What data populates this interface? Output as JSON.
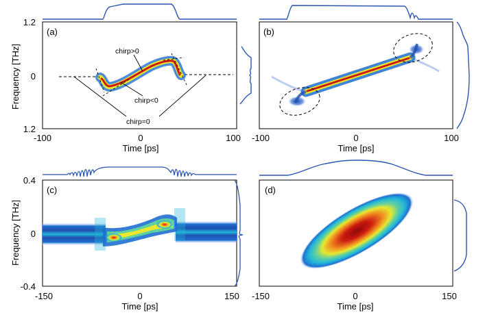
{
  "figure": {
    "ylabel_top": "Frequency [THz]",
    "ylabel_bottom": "Frequency [THz]"
  },
  "colors": {
    "background_blue": "#1f3f9a",
    "line_blue": "#2a55b0",
    "colormap": [
      "#2437a0",
      "#1f6fd0",
      "#22b6d8",
      "#5fd0a0",
      "#e8e830",
      "#f08a20",
      "#cc1a10",
      "#8f0a08"
    ]
  },
  "chart_data": [
    {
      "type": "heatmap",
      "panel_label": "(a)",
      "xlabel": "Time [ps]",
      "xlim": [
        -100,
        100
      ],
      "xticks": [
        "-100",
        "0",
        "100"
      ],
      "ytick_labels": [
        "1.2",
        "0",
        "1.2"
      ],
      "ylim": [
        -1.2,
        1.2
      ],
      "ridge": [
        [
          -35,
          -0.18
        ],
        [
          -28,
          -0.2
        ],
        [
          -20,
          -0.15
        ],
        [
          0,
          0.0
        ],
        [
          20,
          0.15
        ],
        [
          28,
          0.2
        ],
        [
          35,
          0.18
        ]
      ],
      "annotations": [
        "chirp>0",
        "chirp<0",
        "chirp=0"
      ],
      "top_marginal": [
        [
          -70,
          0.05
        ],
        [
          -40,
          0.12
        ],
        [
          -30,
          0.75
        ],
        [
          -20,
          0.92
        ],
        [
          0,
          0.95
        ],
        [
          20,
          0.92
        ],
        [
          30,
          0.75
        ],
        [
          40,
          0.12
        ],
        [
          70,
          0.05
        ]
      ],
      "right_marginal": [
        [
          -0.45,
          0.0
        ],
        [
          -0.3,
          0.15
        ],
        [
          -0.1,
          0.55
        ],
        [
          0.0,
          0.62
        ],
        [
          0.1,
          0.55
        ],
        [
          0.3,
          0.15
        ],
        [
          0.45,
          0.0
        ]
      ]
    },
    {
      "type": "heatmap",
      "panel_label": "(b)",
      "xlabel": "Time [ps]",
      "xlim": [
        -100,
        100
      ],
      "xticks": [
        "-100",
        "0",
        "100"
      ],
      "ylim": [
        -1.2,
        1.2
      ],
      "ridge": [
        [
          -55,
          -0.55
        ],
        [
          0,
          0.0
        ],
        [
          55,
          0.55
        ]
      ],
      "highlight": "dashed ellipses around pulse ends",
      "top_marginal": [
        [
          -80,
          0.0
        ],
        [
          -60,
          0.1
        ],
        [
          -55,
          0.95
        ],
        [
          0,
          0.92
        ],
        [
          55,
          0.95
        ],
        [
          60,
          0.3
        ],
        [
          65,
          0.6
        ],
        [
          70,
          0.1
        ],
        [
          80,
          0.0
        ]
      ],
      "right_marginal": [
        [
          -1.0,
          0.0
        ],
        [
          -0.8,
          0.3
        ],
        [
          -0.55,
          0.6
        ],
        [
          0.0,
          0.55
        ],
        [
          0.55,
          0.6
        ],
        [
          0.8,
          0.3
        ],
        [
          1.0,
          0.0
        ]
      ]
    },
    {
      "type": "heatmap",
      "panel_label": "(c)",
      "xlabel": "Time [ps]",
      "xlim": [
        -150,
        150
      ],
      "xticks": [
        "-150",
        "0",
        "150"
      ],
      "ytick_labels": [
        "0.4",
        "0",
        "-0.4"
      ],
      "ylim": [
        -0.4,
        0.4
      ],
      "ridge": [
        [
          -60,
          -0.06
        ],
        [
          0,
          0.0
        ],
        [
          55,
          0.06
        ]
      ],
      "top_marginal": [
        [
          -150,
          0.05
        ],
        [
          -90,
          0.05
        ],
        [
          -75,
          0.5
        ],
        [
          -60,
          0.25
        ],
        [
          0,
          0.55
        ],
        [
          55,
          0.3
        ],
        [
          65,
          0.5
        ],
        [
          80,
          0.05
        ],
        [
          150,
          0.05
        ]
      ],
      "right_marginal": [
        [
          -0.4,
          0.0
        ],
        [
          -0.1,
          0.05
        ],
        [
          0.0,
          0.6
        ],
        [
          0.1,
          0.05
        ],
        [
          0.4,
          0.0
        ]
      ]
    },
    {
      "type": "heatmap",
      "panel_label": "(d)",
      "xlabel": "Time [ps]",
      "xlim": [
        -150,
        150
      ],
      "xticks": [
        "-150",
        "0",
        "150"
      ],
      "ylim": [
        -0.4,
        0.4
      ],
      "ridge": [
        [
          -80,
          -0.2
        ],
        [
          0,
          0.0
        ],
        [
          60,
          0.14
        ]
      ],
      "top_marginal": [
        [
          -150,
          0.02
        ],
        [
          -100,
          0.05
        ],
        [
          -60,
          0.5
        ],
        [
          0,
          0.6
        ],
        [
          60,
          0.5
        ],
        [
          100,
          0.05
        ],
        [
          150,
          0.02
        ]
      ],
      "right_marginal": [
        [
          -0.3,
          0.0
        ],
        [
          -0.2,
          0.5
        ],
        [
          0.0,
          0.65
        ],
        [
          0.2,
          0.5
        ],
        [
          0.3,
          0.0
        ]
      ]
    }
  ]
}
